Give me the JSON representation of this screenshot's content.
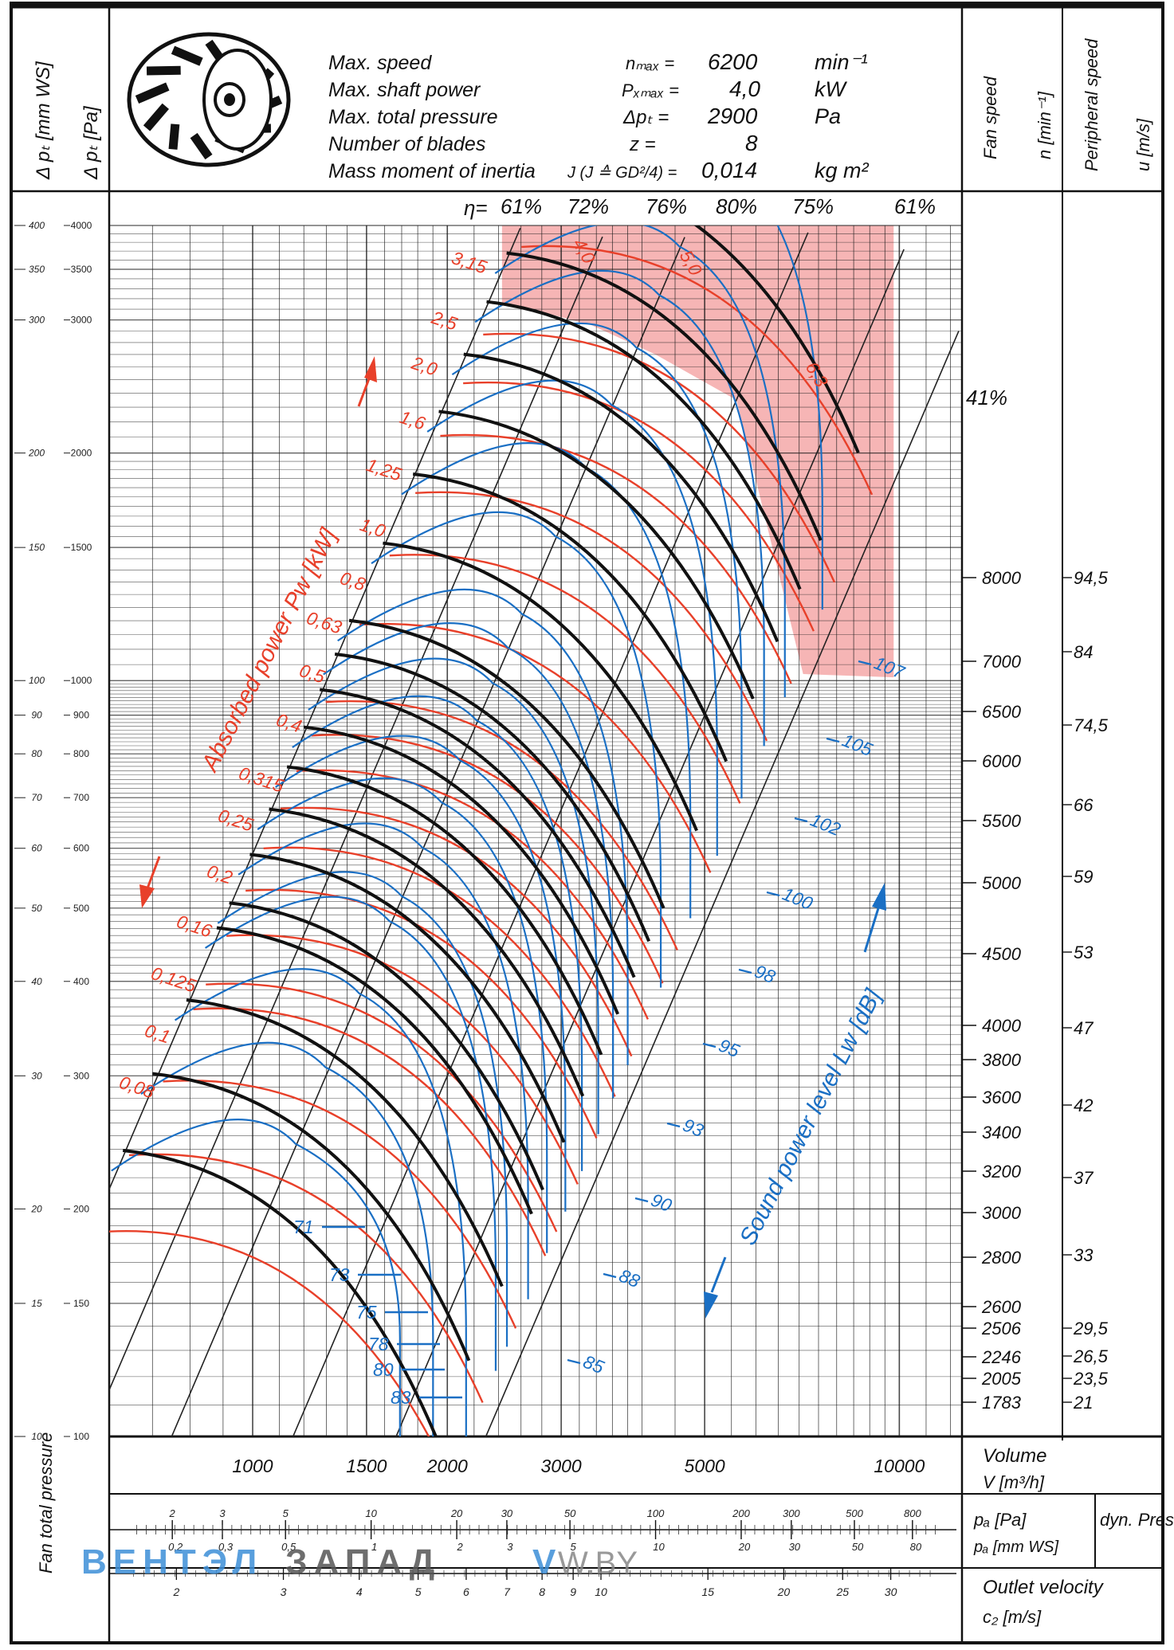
{
  "specs": [
    {
      "label": "Max. speed",
      "symbol": "nₘₐₓ =",
      "value": "6200",
      "unit": "min⁻¹"
    },
    {
      "label": "Max. shaft power",
      "symbol": "Pₓₘₐₓ =",
      "value": "4,0",
      "unit": "kW"
    },
    {
      "label": "Max. total pressure",
      "symbol": "Δpₜ =",
      "value": "2900",
      "unit": "Pa"
    },
    {
      "label": "Number of blades",
      "symbol": "z =",
      "value": "8",
      "unit": ""
    },
    {
      "label": "Mass moment of inertia",
      "symbol": "J (J ≙ GD²/4) =",
      "value": "0,014",
      "unit": "kg m²"
    }
  ],
  "left_header": {
    "mmws": "Δ pₜ [mm WS]",
    "pa": "Δ pₜ [Pa]"
  },
  "right_header": {
    "fan_speed": "Fan speed",
    "fan_speed_unit": "n [min⁻¹]",
    "peripheral": "Peripheral speed",
    "peripheral_unit": "u [m/s]"
  },
  "efficiency": {
    "label": "η=",
    "values": [
      "61%",
      "72%",
      "76%",
      "80%",
      "75%",
      "61%"
    ],
    "side": "41%"
  },
  "annotations": {
    "absorbed_power": "Absorbed power Pw [kW]",
    "sound_level": "Sound power level Lw [dB]",
    "volume_label": "Volume",
    "volume_unit": "V [m³/h]",
    "fan_total_pressure": "Fan total pressure",
    "pd_pa": "pₐ [Pa]",
    "pd_mmws": "pₐ [mm WS]",
    "dyn_press": "dyn. Press.",
    "outlet_velocity": "Outlet velocity",
    "outlet_unit": "c₂ [m/s]",
    "watermark_a": "ВЕНТЭЛ",
    "watermark_b": "ЗАПАД",
    "watermark_c": "V",
    "watermark_d": "W.BY"
  },
  "chart_data": {
    "type": "line",
    "x_scale": "log",
    "y_scale": "log",
    "xlim": [
      600,
      12500
    ],
    "ylim": [
      100,
      4000
    ],
    "x_ticks": [
      "1000",
      "1500",
      "2000",
      "3000",
      "5000",
      "10000"
    ],
    "y_ticks_pa": [
      "4000",
      "3500",
      "3000",
      "2000",
      "1500",
      "1000",
      "900",
      "800",
      "700",
      "600",
      "500",
      "400",
      "300",
      "200",
      "150",
      "100"
    ],
    "y_ticks_mmws": [
      "400",
      "350",
      "300",
      "200",
      "150",
      "100",
      "90",
      "80",
      "70",
      "60",
      "50",
      "40",
      "30",
      "20",
      "15",
      "10"
    ],
    "fan_speed_labels": [
      "8000",
      "7000",
      "6500",
      "6000",
      "5500",
      "5000",
      "4500",
      "4000",
      "3800",
      "3600",
      "3400",
      "3200",
      "3000",
      "2800",
      "2600",
      "2506",
      "2246",
      "2005",
      "1783"
    ],
    "peripheral_labels": [
      "94,5",
      "84",
      "74,5",
      "66",
      "59",
      "53",
      "47",
      "42",
      "37",
      "33",
      "29,5",
      "26,5",
      "23,5",
      "21"
    ],
    "power_labels": [
      "0,08",
      "0,1",
      "0,125",
      "0,16",
      "0,2",
      "0,25",
      "0,315",
      "0,4",
      "0,5",
      "0,63",
      "0,8",
      "1,0",
      "1,25",
      "1,6",
      "2,0",
      "2,5",
      "3,15",
      "4,0",
      "5,0",
      "6,3"
    ],
    "sound_labels": [
      "71",
      "73",
      "75",
      "78",
      "80",
      "83",
      "85",
      "88",
      "90",
      "93",
      "95",
      "98",
      "100",
      "102",
      "105",
      "107"
    ],
    "speed_curves": [
      {
        "n": 1783,
        "points": [
          [
            630,
            239
          ],
          [
            1290,
            200
          ],
          [
            1920,
            100
          ]
        ]
      },
      {
        "n": 2005,
        "points": [
          [
            700,
            302
          ],
          [
            1460,
            252
          ],
          [
            2160,
            126
          ]
        ]
      },
      {
        "n": 2246,
        "points": [
          [
            790,
            378
          ],
          [
            1630,
            316
          ],
          [
            2430,
            158
          ]
        ]
      },
      {
        "n": 2506,
        "points": [
          [
            880,
            471
          ],
          [
            1820,
            393
          ],
          [
            2700,
            197
          ]
        ]
      },
      {
        "n": 2600,
        "points": [
          [
            920,
            508
          ],
          [
            1890,
            423
          ],
          [
            2810,
            212
          ]
        ]
      },
      {
        "n": 2800,
        "points": [
          [
            990,
            589
          ],
          [
            2040,
            491
          ],
          [
            3030,
            245
          ]
        ]
      },
      {
        "n": 3000,
        "points": [
          [
            1060,
            676
          ],
          [
            2190,
            563
          ],
          [
            3240,
            282
          ]
        ]
      },
      {
        "n": 3200,
        "points": [
          [
            1130,
            769
          ],
          [
            2330,
            641
          ],
          [
            3460,
            320
          ]
        ]
      },
      {
        "n": 3400,
        "points": [
          [
            1200,
            868
          ],
          [
            2480,
            723
          ],
          [
            3670,
            362
          ]
        ]
      },
      {
        "n": 3600,
        "points": [
          [
            1270,
            973
          ],
          [
            2620,
            811
          ],
          [
            3890,
            405
          ]
        ]
      },
      {
        "n": 3800,
        "points": [
          [
            1340,
            1084
          ],
          [
            2770,
            903
          ],
          [
            4100,
            452
          ]
        ]
      },
      {
        "n": 4000,
        "points": [
          [
            1410,
            1201
          ],
          [
            2910,
            1001
          ],
          [
            4320,
            500
          ]
        ]
      },
      {
        "n": 4500,
        "points": [
          [
            1590,
            1520
          ],
          [
            3280,
            1267
          ],
          [
            4860,
            633
          ]
        ]
      },
      {
        "n": 5000,
        "points": [
          [
            1770,
            1876
          ],
          [
            3640,
            1564
          ],
          [
            5400,
            782
          ]
        ]
      },
      {
        "n": 5500,
        "points": [
          [
            1940,
            2270
          ],
          [
            4000,
            1892
          ],
          [
            5940,
            946
          ]
        ]
      },
      {
        "n": 6000,
        "points": [
          [
            2120,
            2702
          ],
          [
            4370,
            2252
          ],
          [
            6480,
            1126
          ]
        ]
      },
      {
        "n": 6500,
        "points": [
          [
            2300,
            3171
          ],
          [
            4730,
            2643
          ],
          [
            7020,
            1321
          ]
        ]
      },
      {
        "n": 7000,
        "points": [
          [
            2470,
            3678
          ],
          [
            5100,
            3065
          ],
          [
            7560,
            1533
          ]
        ]
      },
      {
        "n": 8000,
        "points": [
          [
            2830,
            4804
          ],
          [
            5820,
            4003
          ],
          [
            8640,
            2002
          ]
        ]
      }
    ]
  },
  "lower_scales": {
    "pd_pa": [
      "2",
      "3",
      "5",
      "10",
      "20",
      "30",
      "50",
      "100",
      "200",
      "300",
      "500",
      "800"
    ],
    "pd_mmws": [
      "0,2",
      "0,3",
      "0,5",
      "1",
      "2",
      "3",
      "5",
      "10",
      "20",
      "30",
      "50",
      "80"
    ],
    "velocity": [
      "2",
      "3",
      "4",
      "5",
      "6",
      "7",
      "8",
      "9",
      "10",
      "15",
      "20",
      "25",
      "30"
    ]
  },
  "colors": {
    "grid": "#1a1a1a",
    "power": "#e8402a",
    "sound": "#1a6fc4",
    "speed": "#111111",
    "zone": "#f4a3a3",
    "watermark_blue": "#3d8fd8",
    "watermark_gray": "#8a8a8a"
  }
}
